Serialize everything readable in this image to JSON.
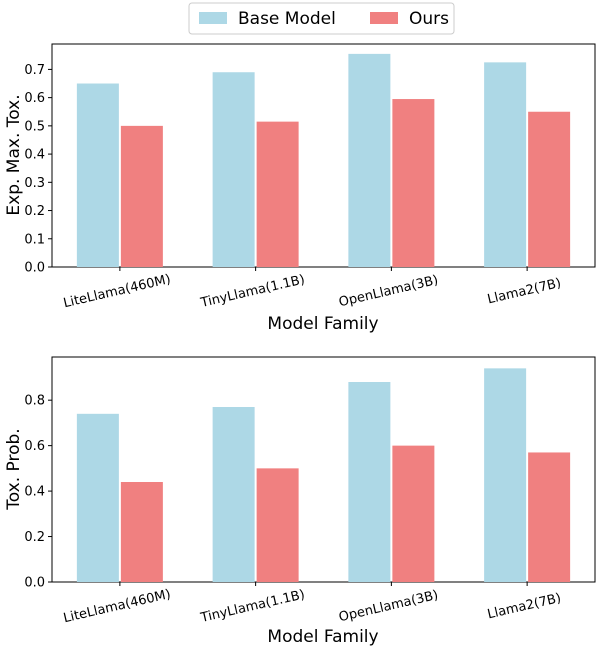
{
  "legend": {
    "items": [
      {
        "label": "Base Model",
        "color": "#add8e6"
      },
      {
        "label": "Ours",
        "color": "#f08080"
      }
    ]
  },
  "chart_data": [
    {
      "type": "bar",
      "categories": [
        "LiteLlama(460M)",
        "TinyLlama(1.1B)",
        "OpenLlama(3B)",
        "Llama2(7B)"
      ],
      "series": [
        {
          "name": "Base Model",
          "color": "#add8e6",
          "values": [
            0.65,
            0.69,
            0.755,
            0.725
          ]
        },
        {
          "name": "Ours",
          "color": "#f08080",
          "values": [
            0.5,
            0.515,
            0.595,
            0.55
          ]
        }
      ],
      "xlabel": "Model Family",
      "ylabel": "Exp. Max. Tox.",
      "ylim": [
        0,
        0.79
      ],
      "yticks": [
        0.0,
        0.1,
        0.2,
        0.3,
        0.4,
        0.5,
        0.6,
        0.7
      ],
      "ytick_labels": [
        "0.0",
        "0.1",
        "0.2",
        "0.3",
        "0.4",
        "0.5",
        "0.6",
        "0.7"
      ],
      "grid": false
    },
    {
      "type": "bar",
      "categories": [
        "LiteLlama(460M)",
        "TinyLlama(1.1B)",
        "OpenLlama(3B)",
        "Llama2(7B)"
      ],
      "series": [
        {
          "name": "Base Model",
          "color": "#add8e6",
          "values": [
            0.74,
            0.77,
            0.88,
            0.94
          ]
        },
        {
          "name": "Ours",
          "color": "#f08080",
          "values": [
            0.44,
            0.5,
            0.6,
            0.57
          ]
        }
      ],
      "xlabel": "Model Family",
      "ylabel": "Tox. Prob.",
      "ylim": [
        0,
        0.99
      ],
      "yticks": [
        0.0,
        0.2,
        0.4,
        0.6,
        0.8
      ],
      "ytick_labels": [
        "0.0",
        "0.2",
        "0.4",
        "0.6",
        "0.8"
      ],
      "grid": false
    }
  ]
}
